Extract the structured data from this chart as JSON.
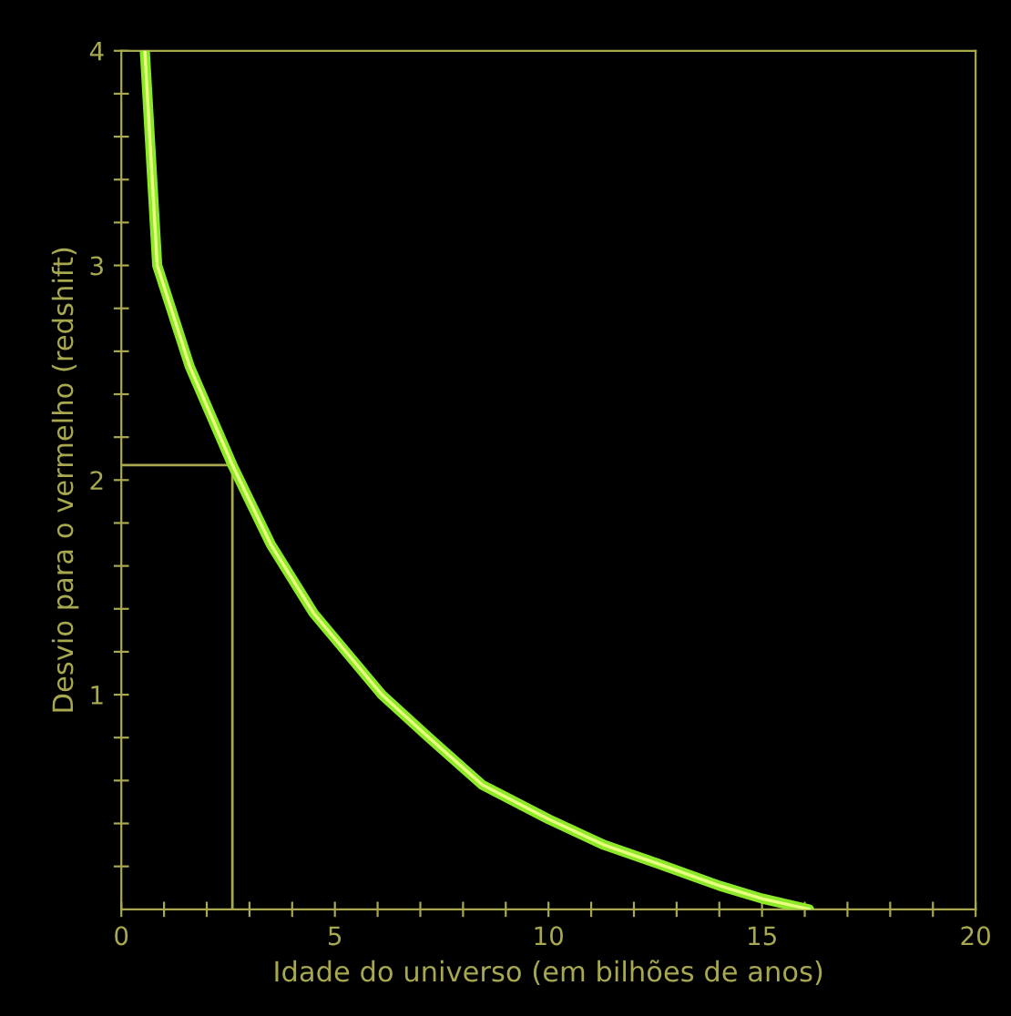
{
  "chart_data": {
    "type": "line",
    "xlabel": "Idade do universo (em bilhões de anos)",
    "ylabel": "Desvio para o vermelho (redshift)",
    "xlim": [
      0,
      20
    ],
    "ylim": [
      0,
      4
    ],
    "xticks": [
      0,
      {
        "value": 1,
        "label": null
      },
      {
        "value": 2,
        "label": null
      },
      {
        "value": 3,
        "label": null
      },
      {
        "value": 4,
        "label": null
      },
      5,
      {
        "value": 6,
        "label": null
      },
      {
        "value": 7,
        "label": null
      },
      {
        "value": 8,
        "label": null
      },
      {
        "value": 9,
        "label": null
      },
      10,
      {
        "value": 11,
        "label": null
      },
      {
        "value": 12,
        "label": null
      },
      {
        "value": 13,
        "label": null
      },
      {
        "value": 14,
        "label": null
      },
      15,
      {
        "value": 16,
        "label": null
      },
      {
        "value": 17,
        "label": null
      },
      {
        "value": 18,
        "label": null
      },
      {
        "value": 19,
        "label": null
      },
      20
    ],
    "yticks": [
      {
        "value": 0.2,
        "label": null
      },
      {
        "value": 0.4,
        "label": null
      },
      {
        "value": 0.6,
        "label": null
      },
      {
        "value": 0.8,
        "label": null
      },
      1,
      {
        "value": 1.2,
        "label": null
      },
      {
        "value": 1.4,
        "label": null
      },
      {
        "value": 1.6,
        "label": null
      },
      {
        "value": 1.8,
        "label": null
      },
      2,
      {
        "value": 2.2,
        "label": null
      },
      {
        "value": 2.4,
        "label": null
      },
      {
        "value": 2.6,
        "label": null
      },
      {
        "value": 2.8,
        "label": null
      },
      3,
      {
        "value": 3.2,
        "label": null
      },
      {
        "value": 3.4,
        "label": null
      },
      {
        "value": 3.6,
        "label": null
      },
      {
        "value": 3.8,
        "label": null
      },
      4
    ],
    "grid": false,
    "legend": false,
    "marker": "none",
    "line_style": "solid",
    "ref_lines": [
      {
        "axis": "x",
        "value": 2.6,
        "color": "#a8a850"
      },
      {
        "axis": "y",
        "value": 2.07,
        "color": "#a8a850"
      }
    ],
    "series": [
      {
        "color": "#8ee82a",
        "x": [
          0.55,
          0.84,
          1.6,
          2.6,
          3.5,
          4.5,
          6.1,
          7.2,
          8.45,
          10,
          11.3,
          12.6,
          14,
          15,
          16.1
        ],
        "values": [
          4.0,
          3.0,
          2.53,
          2.07,
          1.7,
          1.38,
          1.0,
          0.8,
          0.58,
          0.42,
          0.3,
          0.21,
          0.11,
          0.05,
          0.0
        ]
      }
    ]
  }
}
